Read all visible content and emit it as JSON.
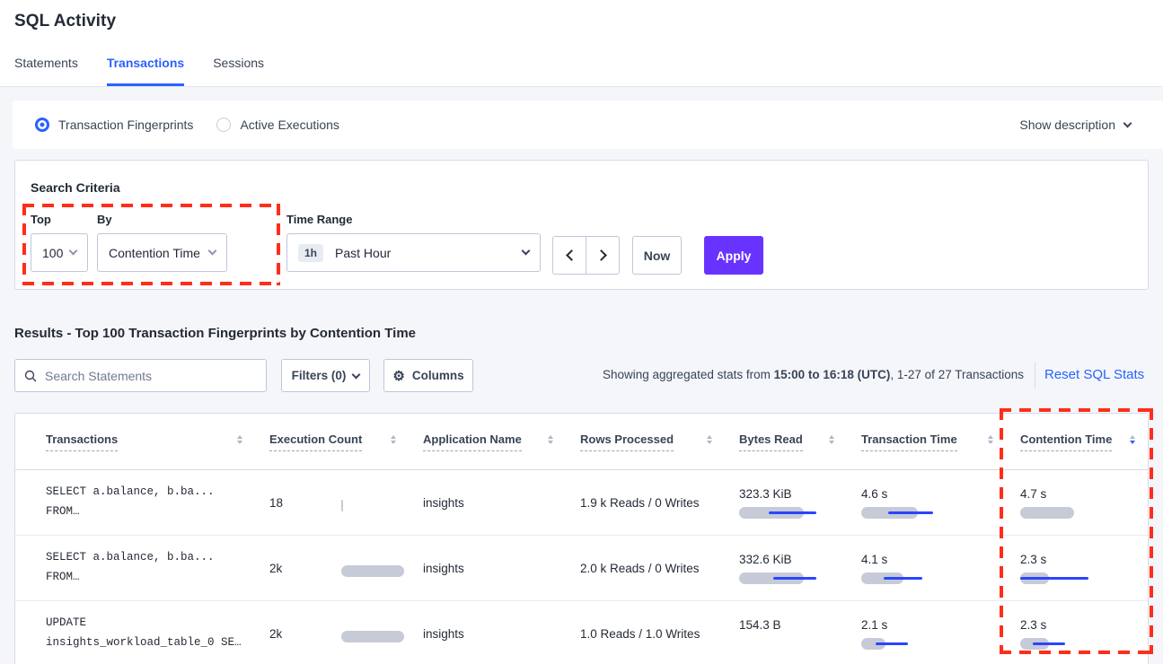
{
  "page": {
    "title": "SQL Activity"
  },
  "tabs": [
    {
      "label": "Statements",
      "active": false
    },
    {
      "label": "Transactions",
      "active": true
    },
    {
      "label": "Sessions",
      "active": false
    }
  ],
  "view_toggle": {
    "options": [
      {
        "label": "Transaction Fingerprints",
        "selected": true
      },
      {
        "label": "Active Executions",
        "selected": false
      }
    ],
    "show_description_label": "Show description"
  },
  "search_criteria": {
    "heading": "Search Criteria",
    "top": {
      "label": "Top",
      "value": "100"
    },
    "by": {
      "label": "By",
      "value": "Contention Time"
    },
    "time_range": {
      "label": "Time Range",
      "badge": "1h",
      "value": "Past Hour"
    },
    "now_label": "Now",
    "apply_label": "Apply"
  },
  "results": {
    "heading": "Results - Top 100 Transaction Fingerprints by Contention Time",
    "search_placeholder": "Search Statements",
    "filters_label": "Filters (0)",
    "columns_label": "Columns",
    "gear_glyph": "⚙",
    "stats_prefix": "Showing aggregated stats from ",
    "stats_bold": "15:00 to 16:18 (UTC)",
    "stats_suffix": ", 1-27 of 27 Transactions",
    "reset_label": "Reset SQL Stats"
  },
  "table": {
    "headers": [
      {
        "label": "Transactions",
        "sort": "none"
      },
      {
        "label": "Execution Count",
        "sort": "none"
      },
      {
        "label": "Application Name",
        "sort": "none"
      },
      {
        "label": "Rows Processed",
        "sort": "none"
      },
      {
        "label": "Bytes Read",
        "sort": "none"
      },
      {
        "label": "Transaction Time",
        "sort": "none"
      },
      {
        "label": "Contention Time",
        "sort": "desc"
      }
    ],
    "rows": [
      {
        "query_line1": "SELECT a.balance, b.ba...",
        "query_line2": "FROM…",
        "execution_count": "18",
        "application": "insights",
        "rows_processed": "1.9 k Reads / 0 Writes",
        "bytes_read": "323.3 KiB",
        "transaction_time": "4.6 s",
        "contention_time": "4.7 s",
        "bars": {
          "execution": {
            "bar": 2
          },
          "bytes": {
            "bar": 72,
            "line": [
              33,
              86
            ]
          },
          "txn": {
            "bar": 63,
            "line": [
              30,
              80
            ]
          },
          "contention": {
            "bar": 60,
            "line": null
          }
        }
      },
      {
        "query_line1": "SELECT a.balance, b.ba...",
        "query_line2": "FROM…",
        "execution_count": "2k",
        "application": "insights",
        "rows_processed": "2.0 k Reads / 0 Writes",
        "bytes_read": "332.6 KiB",
        "transaction_time": "4.1 s",
        "contention_time": "2.3 s",
        "bars": {
          "execution": {
            "bar": 70
          },
          "bytes": {
            "bar": 72,
            "line": [
              38,
              86
            ]
          },
          "txn": {
            "bar": 47,
            "line": [
              25,
              68
            ]
          },
          "contention": {
            "bar": 32,
            "line": [
              0,
              76
            ]
          }
        }
      },
      {
        "query_line1": "UPDATE",
        "query_line2": "insights_workload_table_0 SE…",
        "execution_count": "2k",
        "application": "insights",
        "rows_processed": "1.0 Reads / 1.0 Writes",
        "bytes_read": "154.3 B",
        "transaction_time": "2.1 s",
        "contention_time": "2.3 s",
        "bars": {
          "execution": {
            "bar": 70
          },
          "bytes": null,
          "txn": {
            "bar": 27,
            "line": [
              16,
              52
            ]
          },
          "contention": {
            "bar": 32,
            "line": [
              14,
              50
            ]
          }
        }
      }
    ]
  },
  "colors": {
    "accent_blue": "#2962ff",
    "bar_line_blue": "#2846ff",
    "bar_gray": "#c7cad7",
    "apply_purple": "#6933ff",
    "annotation_red": "#ff2d1a"
  }
}
